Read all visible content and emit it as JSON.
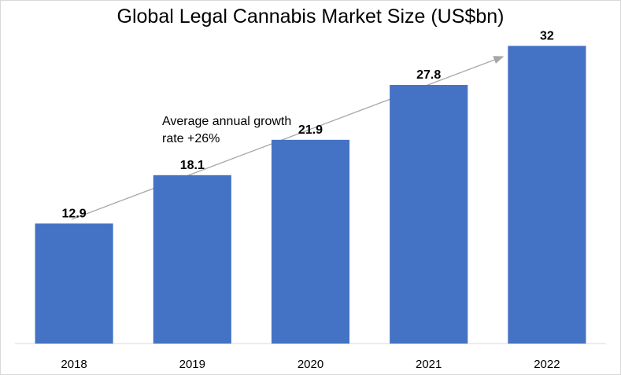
{
  "chart_data": {
    "type": "bar",
    "title": "Global Legal Cannabis Market Size (US$bn)",
    "categories": [
      "2018",
      "2019",
      "2020",
      "2021",
      "2022"
    ],
    "values": [
      12.9,
      18.1,
      21.9,
      27.8,
      32
    ],
    "value_labels": [
      "12.9",
      "18.1",
      "21.9",
      "27.8",
      "32"
    ],
    "ylim": [
      0,
      36
    ],
    "grid": false,
    "bar_color": "#4472C4",
    "annotation": {
      "line1": "Average annual growth",
      "line2": "rate +26%"
    }
  }
}
